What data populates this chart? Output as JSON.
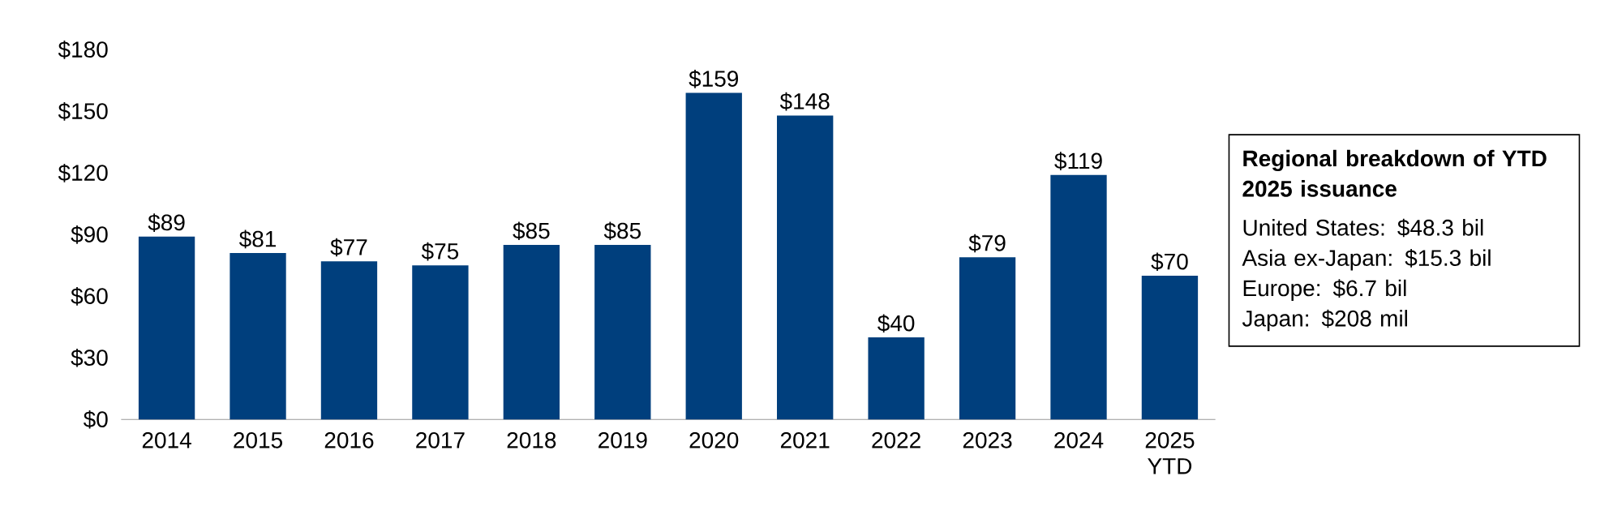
{
  "chart_data": {
    "type": "bar",
    "categories": [
      "2014",
      "2015",
      "2016",
      "2017",
      "2018",
      "2019",
      "2020",
      "2021",
      "2022",
      "2023",
      "2024",
      "2025 YTD"
    ],
    "values": [
      89,
      81,
      77,
      75,
      85,
      85,
      159,
      148,
      40,
      79,
      119,
      70
    ],
    "value_labels": [
      "$89",
      "$81",
      "$77",
      "$75",
      "$85",
      "$85",
      "$159",
      "$148",
      "$40",
      "$79",
      "$119",
      "$70"
    ],
    "color": "#003f7d",
    "ylim": [
      0,
      180
    ],
    "yticks": [
      {
        "value": 0,
        "label": "$0"
      },
      {
        "value": 30,
        "label": "$30"
      },
      {
        "value": 60,
        "label": "$60"
      },
      {
        "value": 90,
        "label": "$90"
      },
      {
        "value": 120,
        "label": "$120"
      },
      {
        "value": 150,
        "label": "$150"
      },
      {
        "value": 180,
        "label": "$180"
      }
    ],
    "annotations": [
      "Regional breakdown of YTD 2025 issuance",
      "United States: $48.3 bil",
      "Asia ex-Japan: $15.3 bil",
      "Europe: $6.7 bil",
      "Japan: $208 mil"
    ]
  }
}
